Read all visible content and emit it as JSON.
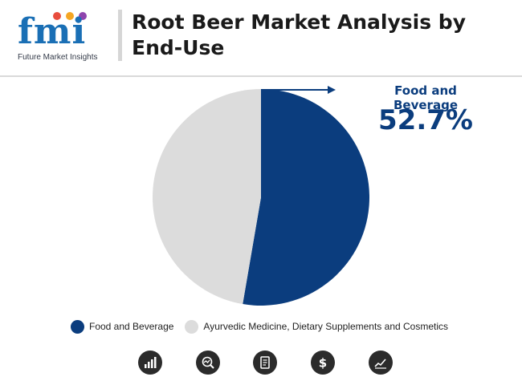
{
  "header": {
    "logo_text": "fmi",
    "logo_subtitle": "Future Market Insights",
    "title": "Root Beer Market Analysis by End-Use"
  },
  "chart_data": {
    "type": "pie",
    "title": "Root Beer Market Analysis by End-Use",
    "slices": [
      {
        "label": "Food and Beverage",
        "value": 52.7,
        "color": "#0b3d7e"
      },
      {
        "label": "Ayurvedic Medicine, Dietary Supplements and Cosmetics",
        "value": 47.3,
        "color": "#dcdcdc"
      }
    ],
    "annotation": {
      "label": "Food and Beverage",
      "value_text": "52.7%"
    },
    "legend_position": "bottom"
  },
  "footer_icons": [
    "bar-chart-icon",
    "magnifier-chart-icon",
    "report-icon",
    "dollar-icon",
    "trend-line-icon"
  ]
}
